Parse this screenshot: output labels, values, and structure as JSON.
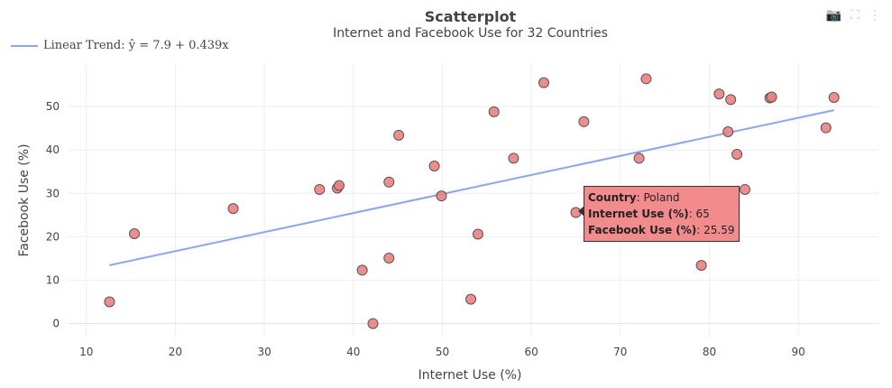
{
  "chart_data": {
    "type": "scatter",
    "title": "Scatterplot",
    "subtitle": "Internet and Facebook Use for 32 Countries",
    "xlabel": "Internet Use (%)",
    "ylabel": "Facebook Use (%)",
    "xlim": [
      8,
      99
    ],
    "ylim": [
      -3,
      60
    ],
    "xticks": [
      10,
      20,
      30,
      40,
      50,
      60,
      70,
      80,
      90
    ],
    "yticks": [
      0,
      10,
      20,
      30,
      40,
      50
    ],
    "grid": true,
    "legend_position": "top-left",
    "point_color": "#f08080",
    "trend_color": "#89a5f5",
    "points": [
      {
        "x": 12.6,
        "y": 5.0
      },
      {
        "x": 15.4,
        "y": 20.7
      },
      {
        "x": 26.5,
        "y": 26.5
      },
      {
        "x": 36.2,
        "y": 30.9
      },
      {
        "x": 38.2,
        "y": 31.2
      },
      {
        "x": 38.4,
        "y": 31.8
      },
      {
        "x": 41.0,
        "y": 12.3
      },
      {
        "x": 42.2,
        "y": 0.0
      },
      {
        "x": 44.0,
        "y": 32.6
      },
      {
        "x": 44.0,
        "y": 15.1
      },
      {
        "x": 45.1,
        "y": 43.4
      },
      {
        "x": 49.1,
        "y": 36.3
      },
      {
        "x": 49.9,
        "y": 29.4
      },
      {
        "x": 53.2,
        "y": 5.6
      },
      {
        "x": 54.0,
        "y": 20.6
      },
      {
        "x": 55.8,
        "y": 48.8
      },
      {
        "x": 58.0,
        "y": 38.1
      },
      {
        "x": 61.4,
        "y": 55.5
      },
      {
        "x": 65.0,
        "y": 25.59
      },
      {
        "x": 65.9,
        "y": 46.5
      },
      {
        "x": 72.1,
        "y": 38.1
      },
      {
        "x": 72.9,
        "y": 56.4
      },
      {
        "x": 79.1,
        "y": 13.4
      },
      {
        "x": 81.1,
        "y": 52.9
      },
      {
        "x": 82.1,
        "y": 44.2
      },
      {
        "x": 82.4,
        "y": 51.6
      },
      {
        "x": 83.1,
        "y": 39.0
      },
      {
        "x": 84.0,
        "y": 30.9
      },
      {
        "x": 86.8,
        "y": 52.0
      },
      {
        "x": 87.0,
        "y": 52.2
      },
      {
        "x": 93.1,
        "y": 45.1
      },
      {
        "x": 94.0,
        "y": 52.1
      }
    ],
    "trend": {
      "label": "Linear Trend: ŷ = 7.9 + 0.439x",
      "intercept": 7.9,
      "slope": 0.439,
      "x_range": [
        12.6,
        94.0
      ]
    },
    "hover": {
      "country_label": "Country",
      "country": "Poland",
      "x_label": "Internet Use (%)",
      "x_value": "65",
      "y_label": "Facebook Use (%)",
      "y_value": "25.59"
    }
  },
  "modebar": {
    "camera_icon": "camera-icon",
    "autoscale_icon": "autoscale-icon",
    "logo_icon": "plotly-logo-icon"
  }
}
